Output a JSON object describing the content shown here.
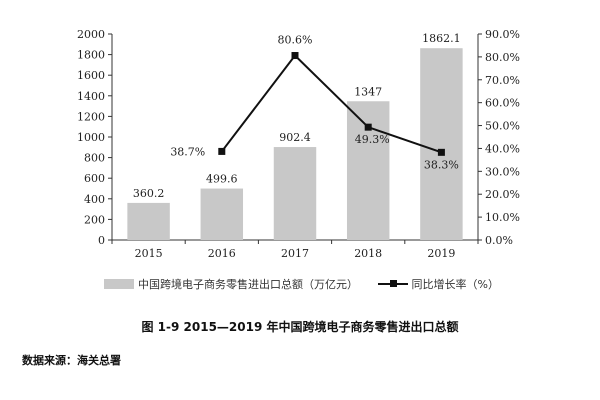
{
  "chart_data": {
    "type": "bar",
    "categories": [
      "2015",
      "2016",
      "2017",
      "2018",
      "2019"
    ],
    "series": [
      {
        "name": "中国跨境电子商务零售进出口总额（万亿元）",
        "kind": "bar",
        "axis": "left",
        "values": [
          360.2,
          499.6,
          902.4,
          1347,
          1862.1
        ],
        "labels": [
          "360.2",
          "499.6",
          "902.4",
          "1347",
          "1862.1"
        ],
        "color": "#c8c8c8"
      },
      {
        "name": "同比增长率（%）",
        "kind": "line",
        "axis": "right",
        "values": [
          null,
          38.7,
          80.6,
          49.3,
          38.3
        ],
        "labels": [
          "",
          "38.7%",
          "80.6%",
          "49.3%",
          "38.3%"
        ],
        "color": "#111111"
      }
    ],
    "ylim": [
      0,
      2000
    ],
    "y2lim": [
      0,
      90
    ],
    "yticks": [
      "0",
      "200",
      "400",
      "600",
      "800",
      "1000",
      "1200",
      "1400",
      "1600",
      "1800",
      "2000"
    ],
    "y2ticks": [
      "0.0%",
      "10.0%",
      "20.0%",
      "30.0%",
      "40.0%",
      "50.0%",
      "60.0%",
      "70.0%",
      "80.0%",
      "90.0%"
    ],
    "grid": false,
    "legend": "bottom"
  },
  "caption": "图 1-9   2015—2019 年中国跨境电子商务零售进出口总额",
  "source": "数据来源：海关总署"
}
